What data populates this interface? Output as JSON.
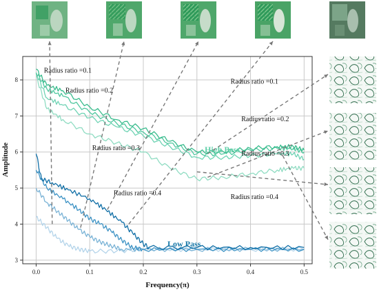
{
  "chart_data": {
    "type": "line",
    "xlabel": "Frequency(π)",
    "ylabel": "Amplitude",
    "xlim": [
      -0.025,
      0.515
    ],
    "ylim": [
      2.9,
      8.65
    ],
    "xticks": [
      0.0,
      0.1,
      0.2,
      0.3,
      0.4,
      0.5
    ],
    "xtick_labels": [
      "0.0",
      "0.1",
      "0.2",
      "0.3",
      "0.4",
      "0.5"
    ],
    "yticks": [
      3,
      4,
      5,
      6,
      7,
      8
    ],
    "ytick_labels": [
      "3",
      "4",
      "5",
      "6",
      "7",
      "8"
    ],
    "grid": true,
    "group_labels": {
      "high": "High Pass",
      "low": "Low Pass"
    },
    "group_colors": {
      "high": "#5fcfa8",
      "low": "#1878a8"
    },
    "series": [
      {
        "group": "high",
        "color": "#8fdcc2",
        "x": [
          0.0,
          0.02,
          0.05,
          0.1,
          0.15,
          0.2,
          0.25,
          0.3,
          0.35,
          0.4,
          0.45,
          0.48,
          0.5
        ],
        "values": [
          8.1,
          7.2,
          6.9,
          6.5,
          6.25,
          6.0,
          5.55,
          5.25,
          5.3,
          5.4,
          5.5,
          5.55,
          5.55
        ]
      },
      {
        "group": "high",
        "color": "#6fd3b4",
        "x": [
          0.0,
          0.02,
          0.05,
          0.1,
          0.15,
          0.2,
          0.25,
          0.3,
          0.35,
          0.4,
          0.45,
          0.48,
          0.5
        ],
        "values": [
          8.2,
          7.5,
          7.3,
          6.95,
          6.7,
          6.45,
          6.15,
          5.85,
          5.85,
          5.9,
          5.95,
          5.95,
          5.8
        ]
      },
      {
        "group": "high",
        "color": "#4ec79e",
        "x": [
          0.0,
          0.02,
          0.05,
          0.1,
          0.15,
          0.2,
          0.25,
          0.3,
          0.35,
          0.4,
          0.45,
          0.48,
          0.5
        ],
        "values": [
          8.2,
          7.75,
          7.55,
          7.1,
          6.8,
          6.55,
          6.25,
          5.95,
          5.95,
          6.05,
          6.1,
          6.1,
          6.0
        ]
      },
      {
        "group": "high",
        "color": "#38bb8c",
        "x": [
          0.0,
          0.02,
          0.05,
          0.1,
          0.15,
          0.2,
          0.25,
          0.3,
          0.35,
          0.4,
          0.45,
          0.48,
          0.5
        ],
        "values": [
          8.3,
          7.85,
          7.7,
          7.25,
          6.9,
          6.65,
          6.3,
          6.0,
          6.0,
          6.1,
          6.15,
          6.15,
          6.05
        ]
      },
      {
        "group": "low",
        "color": "#b4d4ea",
        "x": [
          0.0,
          0.02,
          0.04,
          0.06,
          0.08,
          0.1,
          0.15,
          0.2,
          0.3,
          0.4,
          0.5
        ],
        "values": [
          4.2,
          3.9,
          3.6,
          3.4,
          3.3,
          3.25,
          3.25,
          3.3,
          3.3,
          3.3,
          3.3
        ]
      },
      {
        "group": "low",
        "color": "#7ab3d6",
        "x": [
          0.0,
          0.02,
          0.04,
          0.06,
          0.08,
          0.1,
          0.12,
          0.14,
          0.16,
          0.2,
          0.3,
          0.4,
          0.5
        ],
        "values": [
          5.0,
          4.6,
          4.35,
          4.1,
          3.85,
          3.65,
          3.5,
          3.4,
          3.3,
          3.3,
          3.3,
          3.3,
          3.3
        ]
      },
      {
        "group": "low",
        "color": "#3c92c4",
        "x": [
          0.0,
          0.02,
          0.05,
          0.08,
          0.1,
          0.12,
          0.14,
          0.16,
          0.18,
          0.2,
          0.3,
          0.4,
          0.5
        ],
        "values": [
          5.5,
          5.0,
          4.7,
          4.4,
          4.15,
          4.0,
          3.8,
          3.55,
          3.35,
          3.3,
          3.3,
          3.3,
          3.3
        ]
      },
      {
        "group": "low",
        "color": "#0f6ea6",
        "x": [
          0.0,
          0.01,
          0.03,
          0.06,
          0.1,
          0.13,
          0.16,
          0.18,
          0.2,
          0.21,
          0.3,
          0.4,
          0.5
        ],
        "values": [
          5.95,
          5.25,
          5.15,
          4.95,
          4.7,
          4.4,
          4.05,
          3.75,
          3.45,
          3.35,
          3.35,
          3.35,
          3.35
        ]
      }
    ],
    "annotations_low": [
      {
        "text": "Radius ratio =0.1",
        "x": 0.03,
        "y": 8.2
      },
      {
        "text": "Radius ratio =0.2",
        "x": 0.07,
        "y": 7.65
      },
      {
        "text": "Radius ratio =0.3",
        "x": 0.12,
        "y": 6.05
      },
      {
        "text": "Radius ratio =0.4",
        "x": 0.16,
        "y": 4.8
      }
    ],
    "annotations_high": [
      {
        "text": "Radius ratio =0.1",
        "x": 0.44,
        "y": 7.9
      },
      {
        "text": "Radius ratio =0.2",
        "x": 0.46,
        "y": 6.85
      },
      {
        "text": "Radius ratio =0.3",
        "x": 0.46,
        "y": 5.9
      },
      {
        "text": "Radius ratio =0.4",
        "x": 0.44,
        "y": 4.7
      }
    ]
  }
}
